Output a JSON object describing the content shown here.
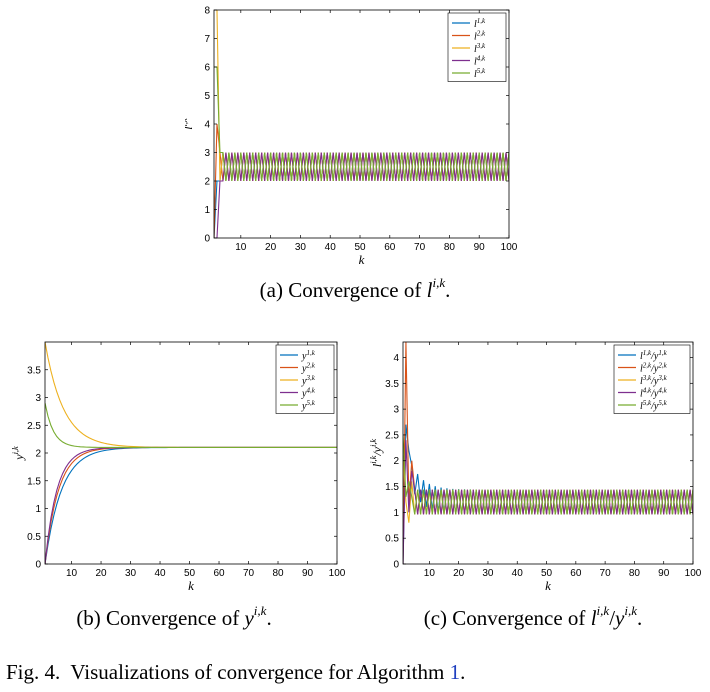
{
  "colors": [
    "#0072BD",
    "#D95319",
    "#EDB120",
    "#7E2F8E",
    "#77AC30"
  ],
  "chart_data": [
    {
      "type": "line",
      "xlabel": "k",
      "ylabel": "l^{i,k}",
      "xlim": [
        1,
        100
      ],
      "ylim": [
        0,
        8
      ],
      "xticks": [
        10,
        20,
        30,
        40,
        50,
        60,
        70,
        80,
        90,
        100
      ],
      "yticks": [
        0,
        1,
        2,
        3,
        4,
        5,
        6,
        7,
        8
      ],
      "legend_position": "top-right",
      "grid": false,
      "series": [
        {
          "name": "l^{1,k}",
          "start": [
            0,
            2
          ],
          "oscillation": {
            "low": 2,
            "high": 3,
            "phase": 0
          }
        },
        {
          "name": "l^{2,k}",
          "start": [
            0,
            4
          ],
          "oscillation": {
            "low": 2,
            "high": 3,
            "phase": 1
          }
        },
        {
          "name": "l^{3,k}",
          "start": [
            8,
            8,
            2
          ],
          "oscillation": {
            "low": 2,
            "high": 3,
            "phase": 0
          }
        },
        {
          "name": "l^{4,k}",
          "start": [
            0,
            0,
            2
          ],
          "oscillation": {
            "low": 2,
            "high": 3,
            "phase": 1
          }
        },
        {
          "name": "l^{5,k}",
          "start": [
            6,
            6,
            3
          ],
          "oscillation": {
            "low": 2,
            "high": 3,
            "phase": 0
          }
        }
      ],
      "caption": {
        "prefix": "(a) Convergence of ",
        "symbol": "l",
        "sup": "i,k",
        "suffix": "."
      }
    },
    {
      "type": "line",
      "xlabel": "k",
      "ylabel": "y^{i,k}",
      "xlim": [
        1,
        100
      ],
      "ylim": [
        0,
        4
      ],
      "xticks": [
        10,
        20,
        30,
        40,
        50,
        60,
        70,
        80,
        90,
        100
      ],
      "yticks": [
        0,
        0.5,
        1,
        1.5,
        2,
        2.5,
        3,
        3.5
      ],
      "legend_position": "top-right",
      "grid": false,
      "series": [
        {
          "name": "y^{1,k}",
          "y0": 0.0,
          "limit": 2.1,
          "rate": 0.18
        },
        {
          "name": "y^{2,k}",
          "y0": 0.0,
          "limit": 2.1,
          "rate": 0.22
        },
        {
          "name": "y^{3,k}",
          "y0": 4.0,
          "limit": 2.1,
          "rate": 0.16
        },
        {
          "name": "y^{4,k}",
          "y0": 0.0,
          "limit": 2.1,
          "rate": 0.25
        },
        {
          "name": "y^{5,k}",
          "y0": 2.9,
          "limit": 2.1,
          "rate": 0.35
        }
      ],
      "caption": {
        "prefix": "(b) Convergence of ",
        "symbol": "y",
        "sup": "i,k",
        "suffix": "."
      }
    },
    {
      "type": "line",
      "xlabel": "k",
      "ylabel": "l^{i,k}/y^{i,k}",
      "xlim": [
        1,
        100
      ],
      "ylim": [
        0,
        4.3
      ],
      "xticks": [
        10,
        20,
        30,
        40,
        50,
        60,
        70,
        80,
        90,
        100
      ],
      "yticks": [
        0,
        0.5,
        1,
        1.5,
        2,
        2.5,
        3,
        3.5,
        4
      ],
      "legend_position": "top-right",
      "grid": false,
      "series": [
        {
          "name": "l^{1,k}/y^{1,k}",
          "start": [
            0.0,
            2.7,
            2.2,
            1.9
          ],
          "center": 1.2,
          "amp": 0.24,
          "phase": 0
        },
        {
          "name": "l^{2,k}/y^{2,k}",
          "start": [
            0.0,
            4.3,
            1.2,
            2.0
          ],
          "center": 1.2,
          "amp": 0.24,
          "phase": 1
        },
        {
          "name": "l^{3,k}/y^{3,k}",
          "start": [
            2.1,
            1.2,
            0.8,
            1.6
          ],
          "center": 1.2,
          "amp": 0.24,
          "phase": 0
        },
        {
          "name": "l^{4,k}/y^{4,k}",
          "start": [
            0.0,
            2.4,
            1.0,
            1.8
          ],
          "center": 1.2,
          "amp": 0.24,
          "phase": 1
        },
        {
          "name": "l^{5,k}/y^{5,k}",
          "start": [
            2.5,
            1.3,
            1.6,
            1.3
          ],
          "center": 1.2,
          "amp": 0.24,
          "phase": 0
        }
      ],
      "caption": {
        "prefix": "(c) Convergence of ",
        "symbol": "l",
        "sup": "i,k",
        "mid": "/",
        "symbol2": "y",
        "sup2": "i,k",
        "suffix": "."
      }
    }
  ],
  "figure_caption": {
    "label": "Fig. 4.",
    "text": "  Visualizations of convergence for Algorithm ",
    "ref": "1",
    "end": "."
  }
}
